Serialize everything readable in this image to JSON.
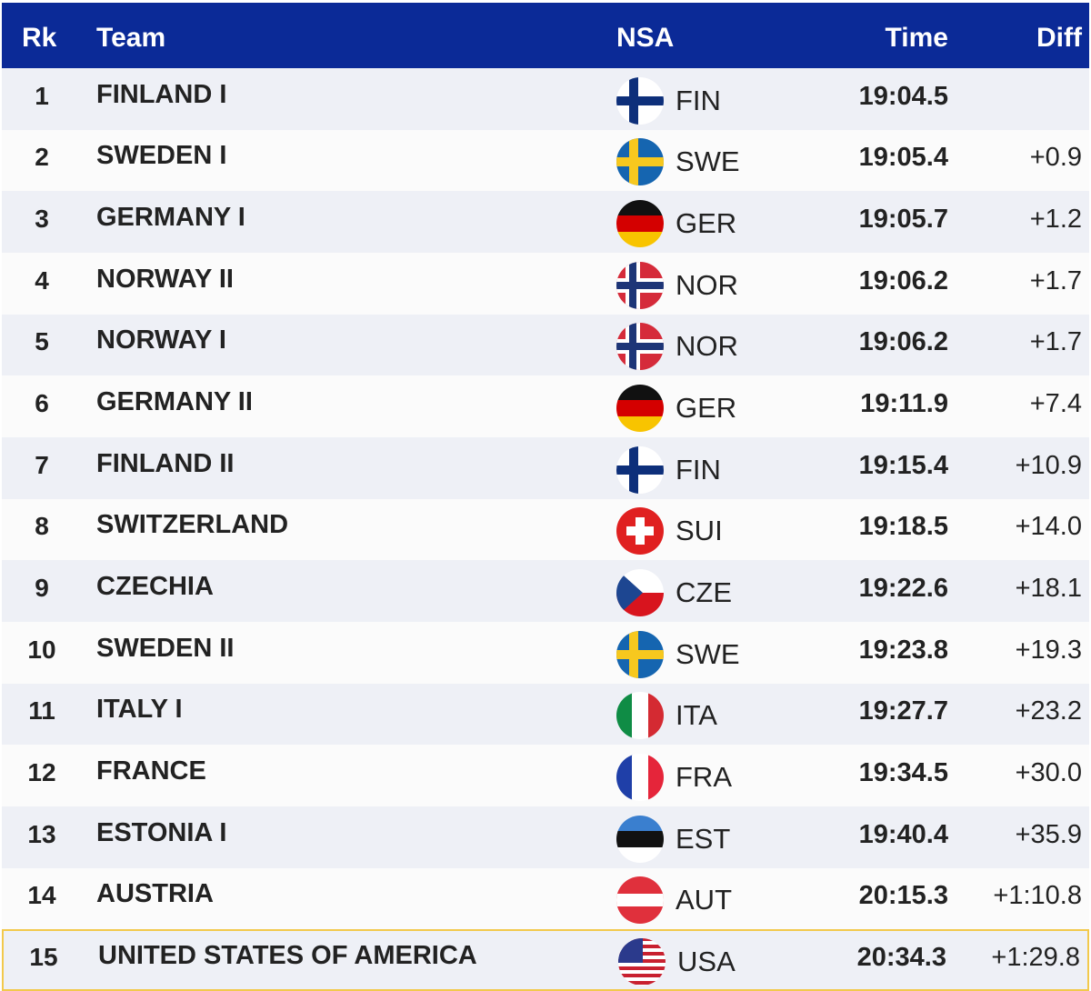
{
  "table": {
    "header": [
      "Rk",
      "Team",
      "NSA",
      "Time",
      "Diff"
    ],
    "rows": [
      {
        "rank": "1",
        "team": "FINLAND I",
        "nsa": "FIN",
        "time": "19:04.5"
      },
      {
        "rank": "2",
        "team": "SWEDEN I",
        "nsa": "SWE",
        "time": "19:05.4",
        "diff": "+0.9"
      },
      {
        "rank": "3",
        "team": "GERMANY I",
        "nsa": "GER",
        "time": "19:05.7",
        "diff": "+1.2"
      },
      {
        "rank": "4",
        "team": "NORWAY II",
        "nsa": "NOR",
        "time": "19:06.2",
        "diff": "+1.7"
      },
      {
        "rank": "5",
        "team": "NORWAY I",
        "nsa": "NOR",
        "time": "19:06.2",
        "diff": "+1.7"
      },
      {
        "rank": "6",
        "team": "GERMANY II",
        "nsa": "GER",
        "time": "19:11.9",
        "diff": "+7.4"
      },
      {
        "rank": "7",
        "team": "FINLAND II",
        "nsa": "FIN",
        "time": "19:15.4",
        "diff": "+10.9"
      },
      {
        "rank": "8",
        "team": "SWITZERLAND",
        "nsa": "SUI",
        "time": "19:18.5",
        "diff": "+14.0"
      },
      {
        "rank": "9",
        "team": "CZECHIA",
        "nsa": "CZE",
        "time": "19:22.6",
        "diff": "+18.1"
      },
      {
        "rank": "10",
        "team": "SWEDEN II",
        "nsa": "SWE",
        "time": "19:23.8",
        "diff": "+19.3"
      },
      {
        "rank": "11",
        "team": "ITALY I",
        "nsa": "ITA",
        "time": "19:27.7",
        "diff": "+23.2"
      },
      {
        "rank": "12",
        "team": "FRANCE",
        "nsa": "FRA",
        "time": "19:34.5",
        "diff": "+30.0"
      },
      {
        "rank": "13",
        "team": "ESTONIA I",
        "nsa": "EST",
        "time": "19:40.4",
        "diff": "+35.9"
      },
      {
        "rank": "14",
        "team": "AUSTRIA",
        "nsa": "AUT",
        "time": "20:15.3",
        "diff": "+1:10.8"
      },
      {
        "rank": "15",
        "team": "UNITED STATES OF AMERICA",
        "nsa": "USA",
        "time": "20:34.3",
        "diff": "+1:29.8"
      }
    ]
  }
}
